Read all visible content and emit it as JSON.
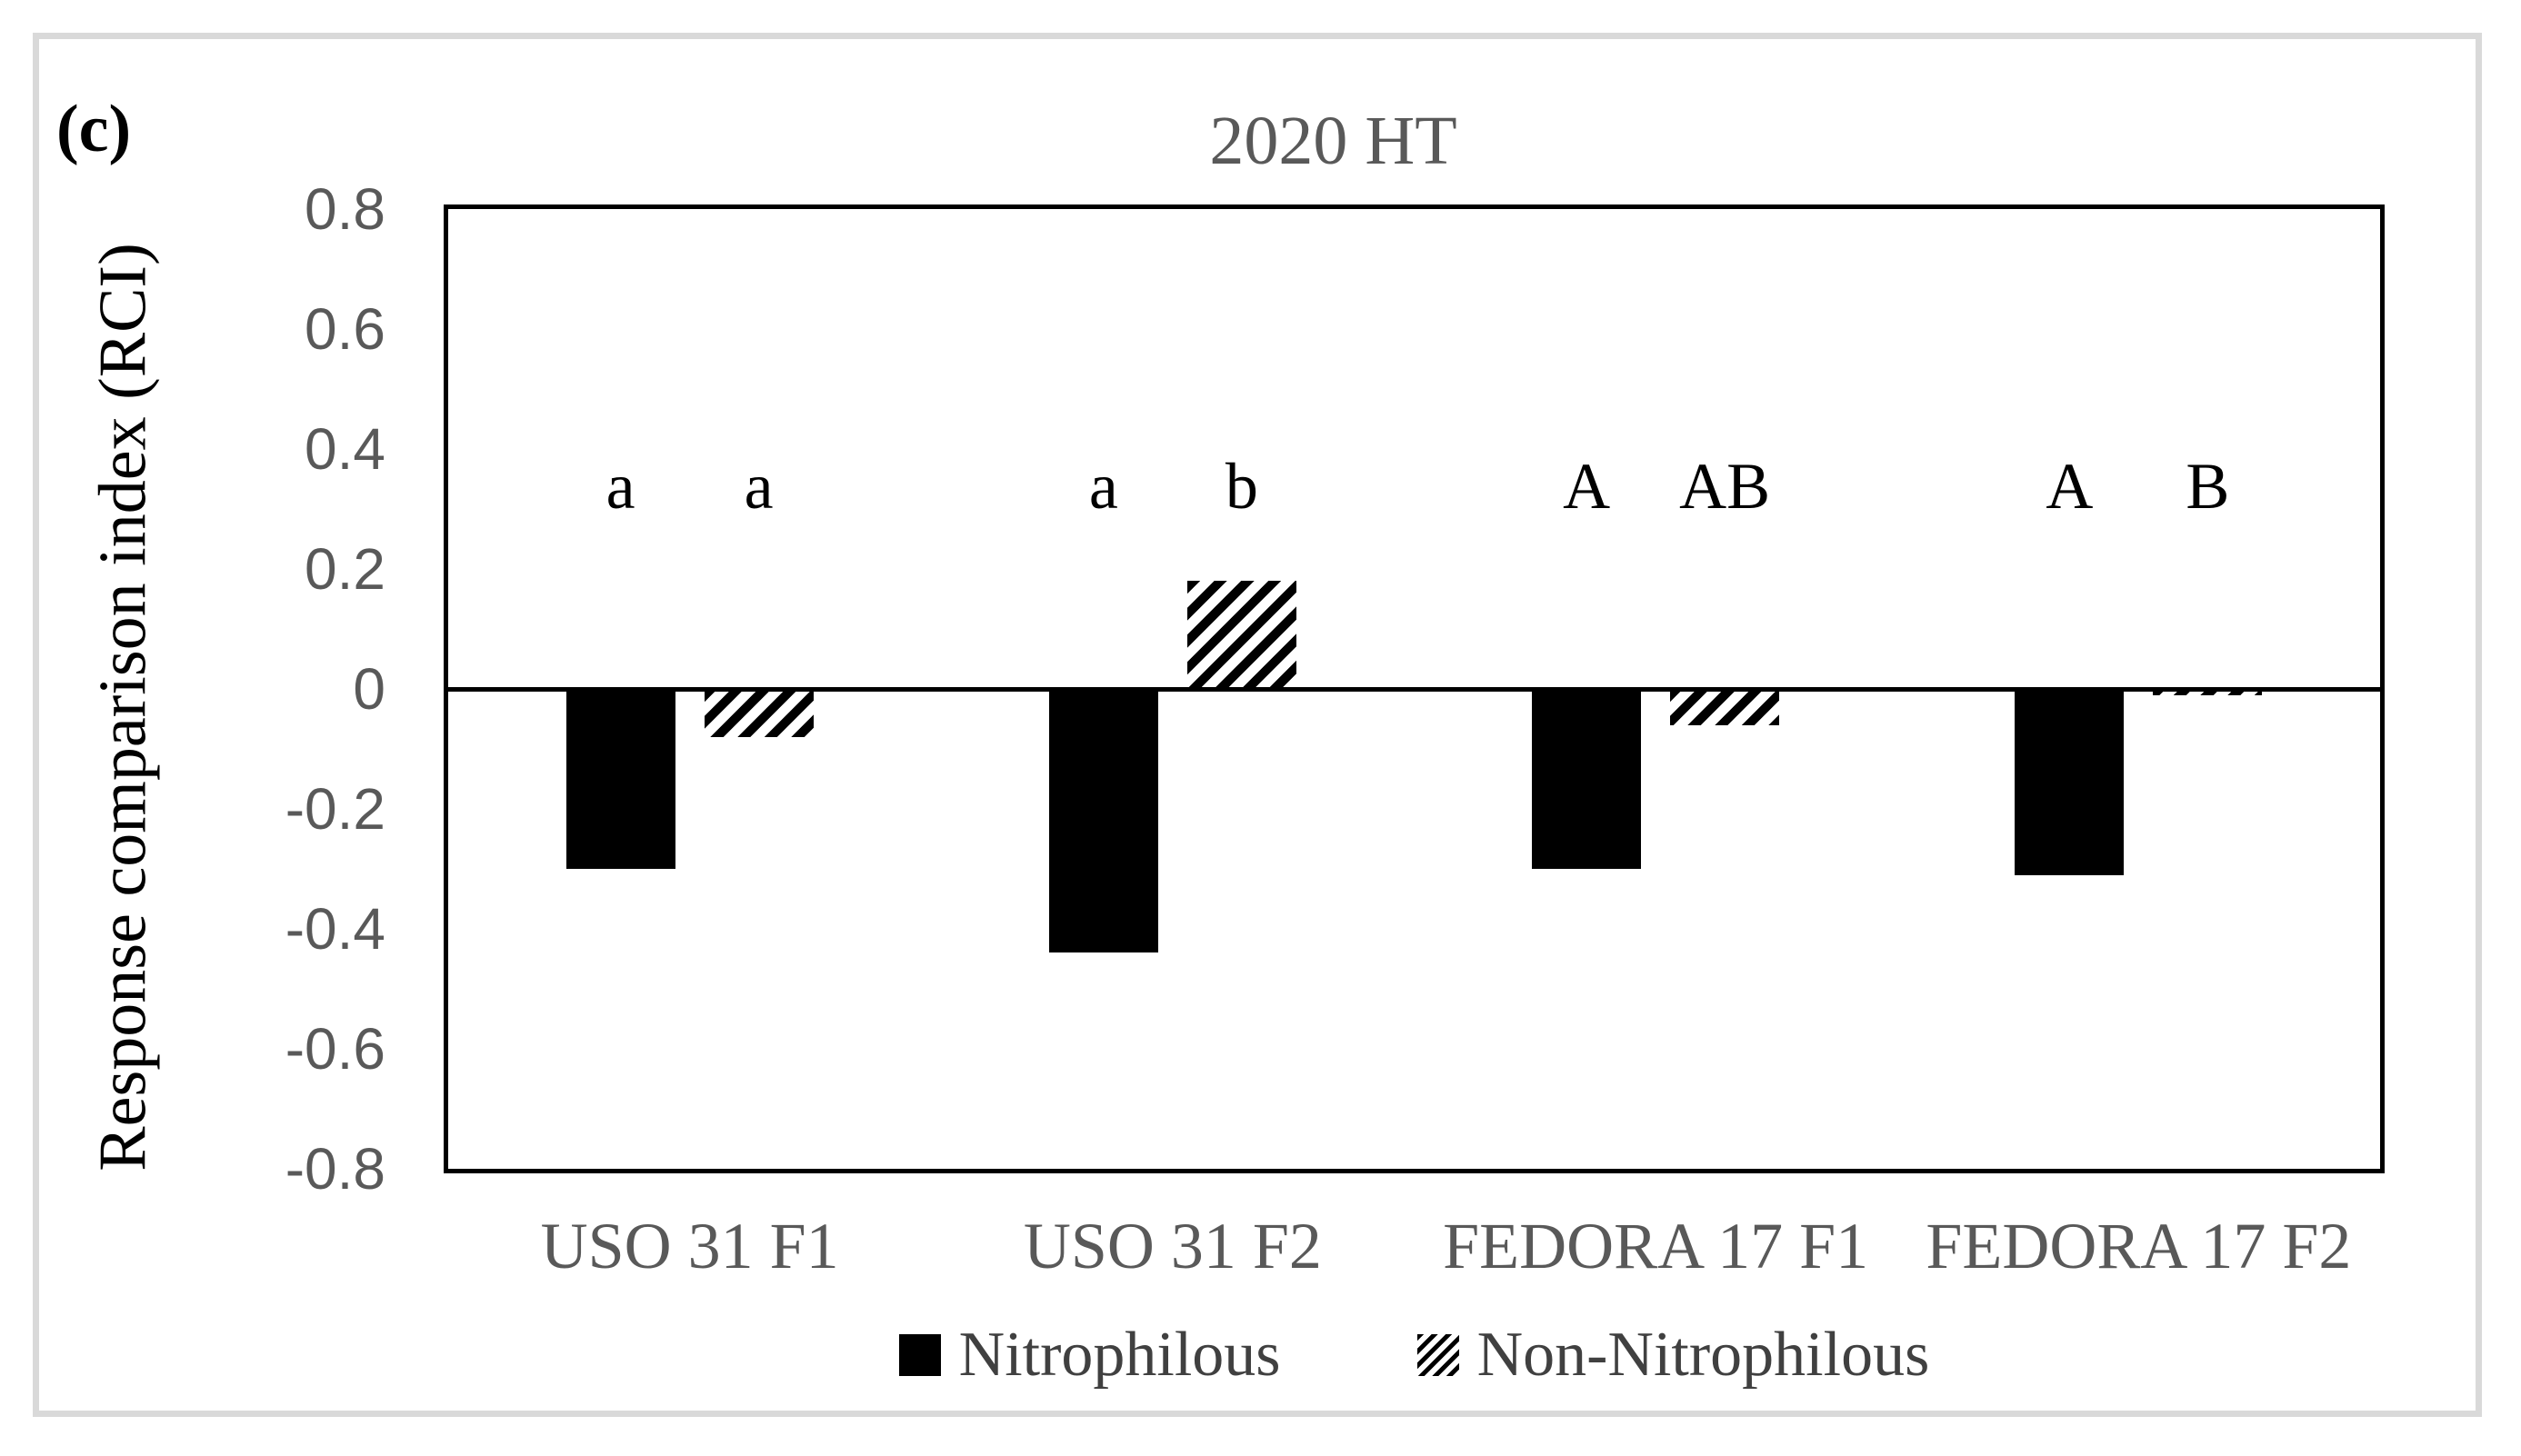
{
  "figure": {
    "panel_label": "(c)",
    "title": "2020 HT",
    "y_axis_title": "Response comparison index (RCI)",
    "colors": {
      "bar_fill": "#000000",
      "axis_text": "#595959",
      "title_text": "#595959",
      "legend_text": "#404040",
      "plot_border": "#000000",
      "figure_border": "#d9d9d9"
    }
  },
  "chart_data": {
    "type": "bar",
    "title": "2020 HT",
    "xlabel": "",
    "ylabel": "Response comparison index (RCI)",
    "ylim": [
      -0.8,
      0.8
    ],
    "ytick_step": 0.2,
    "ytick_labels": [
      "0.8",
      "0.6",
      "0.4",
      "0.2",
      "0",
      "-0.2",
      "-0.4",
      "-0.6",
      "-0.8"
    ],
    "ytick_values": [
      0.8,
      0.6,
      0.4,
      0.2,
      0,
      -0.2,
      -0.4,
      -0.6,
      -0.8
    ],
    "categories": [
      "USO 31 F1",
      "USO 31 F2",
      "FEDORA 17 F1",
      "FEDORA 17 F2"
    ],
    "series": [
      {
        "name": "Nitrophilous",
        "pattern": "solid-black",
        "values": [
          -0.3,
          -0.44,
          -0.3,
          -0.31
        ],
        "sig_letters": [
          "a",
          "a",
          "A",
          "A"
        ]
      },
      {
        "name": "Non-Nitrophilous",
        "pattern": "diagonal-hatch",
        "values": [
          -0.08,
          0.18,
          -0.06,
          -0.01
        ],
        "sig_letters": [
          "a",
          "b",
          "AB",
          "B"
        ]
      }
    ],
    "grid": false,
    "legend_position": "bottom"
  }
}
